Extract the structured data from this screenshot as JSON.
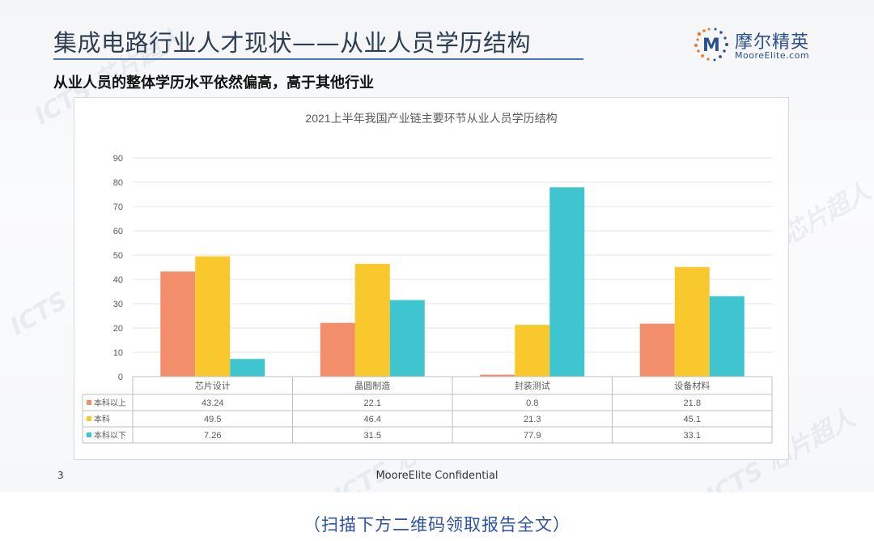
{
  "slide": {
    "title": "集成电路行业人才现状——从业人员学历结构",
    "subtitle": "从业人员的整体学历水平依然偏高，高于其他行业",
    "page_number": "3",
    "confidential": "MooreElite Confidential",
    "logo": {
      "mark": "M",
      "name": "摩尔精英",
      "url": "MooreElite.com"
    },
    "watermark": "ICTS 芯片超人"
  },
  "footer_note": "（扫描下方二维码领取报告全文）",
  "chart_data": {
    "type": "bar",
    "title": "2021上半年我国产业链主要环节从业人员学历结构",
    "categories": [
      "芯片设计",
      "晶圆制造",
      "封装测试",
      "设备材料"
    ],
    "series": [
      {
        "name": "本科以上",
        "color": "#f28e6b",
        "values": [
          43.24,
          22.1,
          0.8,
          21.8
        ],
        "labels": [
          "43.24",
          "22.1",
          "0.8",
          "21.8"
        ]
      },
      {
        "name": "本科",
        "color": "#f9c82c",
        "values": [
          49.5,
          46.4,
          21.3,
          45.1
        ],
        "labels": [
          "49.5",
          "46.4",
          "21.3",
          "45.1"
        ]
      },
      {
        "name": "本科以下",
        "color": "#3fc5cf",
        "values": [
          7.26,
          31.5,
          77.9,
          33.1
        ],
        "labels": [
          "7.26",
          "31.5",
          "77.9",
          "33.1"
        ]
      }
    ],
    "ylim": [
      0,
      90
    ],
    "yticks": [
      0,
      10,
      20,
      30,
      40,
      50,
      60,
      70,
      80,
      90
    ],
    "grid": true,
    "legend": "data-table"
  }
}
